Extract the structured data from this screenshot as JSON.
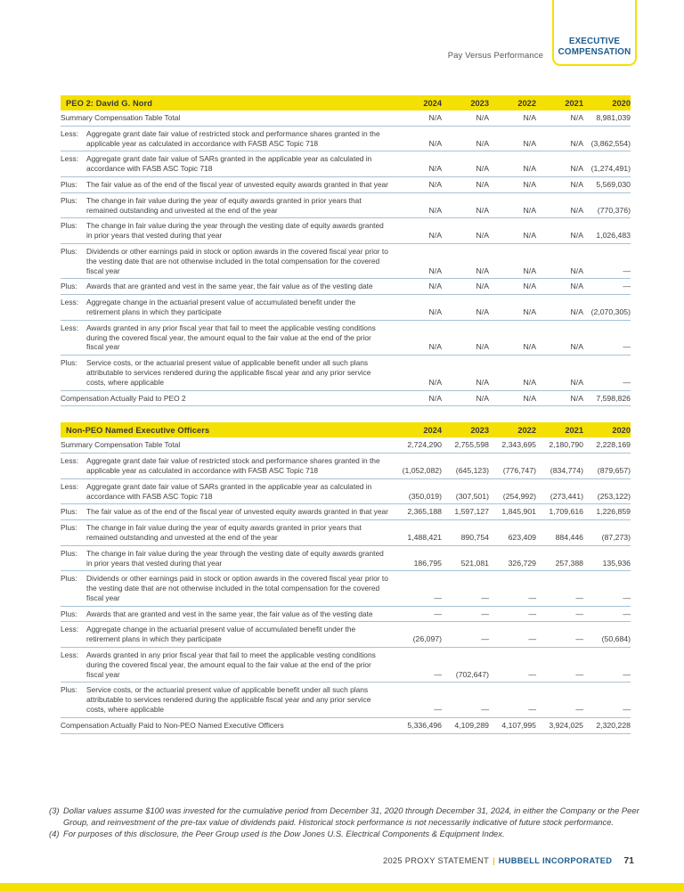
{
  "header": {
    "breadcrumb": "Pay Versus Performance",
    "badge": {
      "line1": "EXECUTIVE",
      "line2": "COMPENSATION"
    }
  },
  "colors": {
    "accent_yellow": "#F5E003",
    "brand_blue": "#1D5C8E",
    "row_border": "#A8C2D4",
    "text_dark": "#414042"
  },
  "tables": [
    {
      "title": "PEO 2: David G. Nord",
      "years": [
        "2024",
        "2023",
        "2022",
        "2021",
        "2020"
      ],
      "rows": [
        {
          "prefix": "",
          "label": "Summary Compensation Table Total",
          "values": [
            "N/A",
            "N/A",
            "N/A",
            "N/A",
            "8,981,039"
          ]
        },
        {
          "prefix": "Less:",
          "label": "Aggregate grant date fair value of restricted stock and performance shares granted in the applicable year as calculated in accordance with FASB ASC Topic 718",
          "values": [
            "N/A",
            "N/A",
            "N/A",
            "N/A",
            "(3,862,554)"
          ]
        },
        {
          "prefix": "Less:",
          "label": "Aggregate grant date fair value of SARs granted in the applicable year as calculated in accordance with FASB ASC Topic 718",
          "values": [
            "N/A",
            "N/A",
            "N/A",
            "N/A",
            "(1,274,491)"
          ]
        },
        {
          "prefix": "Plus:",
          "label": "The fair value as of the end of the fiscal year of unvested equity awards granted in that year",
          "values": [
            "N/A",
            "N/A",
            "N/A",
            "N/A",
            "5,569,030"
          ]
        },
        {
          "prefix": "Plus:",
          "label": "The change in fair value during the year of equity awards granted in prior years that remained outstanding and unvested at the end of the year",
          "values": [
            "N/A",
            "N/A",
            "N/A",
            "N/A",
            "(770,376)"
          ]
        },
        {
          "prefix": "Plus:",
          "label": "The change in fair value during the year through the vesting date of equity awards granted in prior years that vested during that year",
          "values": [
            "N/A",
            "N/A",
            "N/A",
            "N/A",
            "1,026,483"
          ]
        },
        {
          "prefix": "Plus:",
          "label": "Dividends or other earnings paid in stock or option awards in the covered fiscal year prior to the vesting date that are not otherwise included in the total compensation for the covered fiscal year",
          "values": [
            "N/A",
            "N/A",
            "N/A",
            "N/A",
            "—"
          ]
        },
        {
          "prefix": "Plus:",
          "label": "Awards that are granted and vest in the same year, the fair value as of the vesting date",
          "values": [
            "N/A",
            "N/A",
            "N/A",
            "N/A",
            "—"
          ]
        },
        {
          "prefix": "Less:",
          "label": "Aggregate change in the actuarial present value of accumulated benefit under the retirement plans in which they participate",
          "values": [
            "N/A",
            "N/A",
            "N/A",
            "N/A",
            "(2,070,305)"
          ]
        },
        {
          "prefix": "Less:",
          "label": "Awards granted in any prior fiscal year that fail to meet the applicable vesting conditions during the covered fiscal year, the amount equal to the fair value at the end of the prior fiscal year",
          "values": [
            "N/A",
            "N/A",
            "N/A",
            "N/A",
            "—"
          ]
        },
        {
          "prefix": "Plus:",
          "label": "Service costs, or the actuarial present value of applicable benefit under all such plans attributable to services rendered during the applicable fiscal year and any prior service costs, where applicable",
          "values": [
            "N/A",
            "N/A",
            "N/A",
            "N/A",
            "—"
          ]
        },
        {
          "prefix": "",
          "label": "Compensation Actually Paid to PEO 2",
          "values": [
            "N/A",
            "N/A",
            "N/A",
            "N/A",
            "7,598,826"
          ]
        }
      ]
    },
    {
      "title": "Non-PEO Named Executive Officers",
      "years": [
        "2024",
        "2023",
        "2022",
        "2021",
        "2020"
      ],
      "rows": [
        {
          "prefix": "",
          "label": "Summary Compensation Table Total",
          "values": [
            "2,724,290",
            "2,755,598",
            "2,343,695",
            "2,180,790",
            "2,228,169"
          ]
        },
        {
          "prefix": "Less:",
          "label": "Aggregate grant date fair value of restricted stock and performance shares granted in the applicable year as calculated in accordance with FASB ASC Topic 718",
          "values": [
            "(1,052,082)",
            "(645,123)",
            "(776,747)",
            "(834,774)",
            "(879,657)"
          ]
        },
        {
          "prefix": "Less:",
          "label": "Aggregate grant date fair value of SARs granted in the applicable year as calculated in accordance with FASB ASC Topic 718",
          "values": [
            "(350,019)",
            "(307,501)",
            "(254,992)",
            "(273,441)",
            "(253,122)"
          ]
        },
        {
          "prefix": "Plus:",
          "label": "The fair value as of the end of the fiscal year of unvested equity awards granted in that year",
          "values": [
            "2,365,188",
            "1,597,127",
            "1,845,901",
            "1,709,616",
            "1,226,859"
          ]
        },
        {
          "prefix": "Plus:",
          "label": "The change in fair value during the year of equity awards granted in prior years that remained outstanding and unvested at the end of the year",
          "values": [
            "1,488,421",
            "890,754",
            "623,409",
            "884,446",
            "(87,273)"
          ]
        },
        {
          "prefix": "Plus:",
          "label": "The change in fair value during the year through the vesting date of equity awards granted in prior years that vested during that year",
          "values": [
            "186,795",
            "521,081",
            "326,729",
            "257,388",
            "135,936"
          ]
        },
        {
          "prefix": "Plus:",
          "label": "Dividends or other earnings paid in stock or option awards in the covered fiscal year prior to the vesting date that are not otherwise included in the total compensation for the covered fiscal year",
          "values": [
            "—",
            "—",
            "—",
            "—",
            "—"
          ]
        },
        {
          "prefix": "Plus:",
          "label": "Awards that are granted and vest in the same year, the fair value as of the vesting date",
          "values": [
            "—",
            "—",
            "—",
            "—",
            "—"
          ]
        },
        {
          "prefix": "Less:",
          "label": "Aggregate change in the actuarial present value of accumulated benefit under the retirement plans in which they participate",
          "values": [
            "(26,097)",
            "—",
            "—",
            "—",
            "(50,684)"
          ]
        },
        {
          "prefix": "Less:",
          "label": "Awards granted in any prior fiscal year that fail to meet the applicable vesting conditions during the covered fiscal year, the amount equal to the fair value at the end of the prior fiscal year",
          "values": [
            "—",
            "(702,647)",
            "—",
            "—",
            "—"
          ]
        },
        {
          "prefix": "Plus:",
          "label": "Service costs, or the actuarial present value of applicable benefit under all such plans attributable to services rendered during the applicable fiscal year and any prior service costs, where applicable",
          "values": [
            "—",
            "—",
            "—",
            "—",
            "—"
          ]
        },
        {
          "prefix": "",
          "label": "Compensation Actually Paid to Non-PEO Named Executive Officers",
          "values": [
            "5,336,496",
            "4,109,289",
            "4,107,995",
            "3,924,025",
            "2,320,228"
          ]
        }
      ]
    }
  ],
  "footnotes": [
    {
      "marker": "(3)",
      "text": "Dollar values assume $100 was invested for the cumulative period from December 31, 2020 through December 31, 2024, in either the Company or the Peer Group, and reinvestment of the pre-tax value of dividends paid. Historical stock performance is not necessarily indicative of future stock performance."
    },
    {
      "marker": "(4)",
      "text": "For purposes of this disclosure, the Peer Group used is the Dow Jones U.S. Electrical Components & Equipment Index."
    }
  ],
  "footer": {
    "statement": "2025 PROXY STATEMENT",
    "divider": "|",
    "company": "HUBBELL INCORPORATED",
    "page_number": "71"
  }
}
